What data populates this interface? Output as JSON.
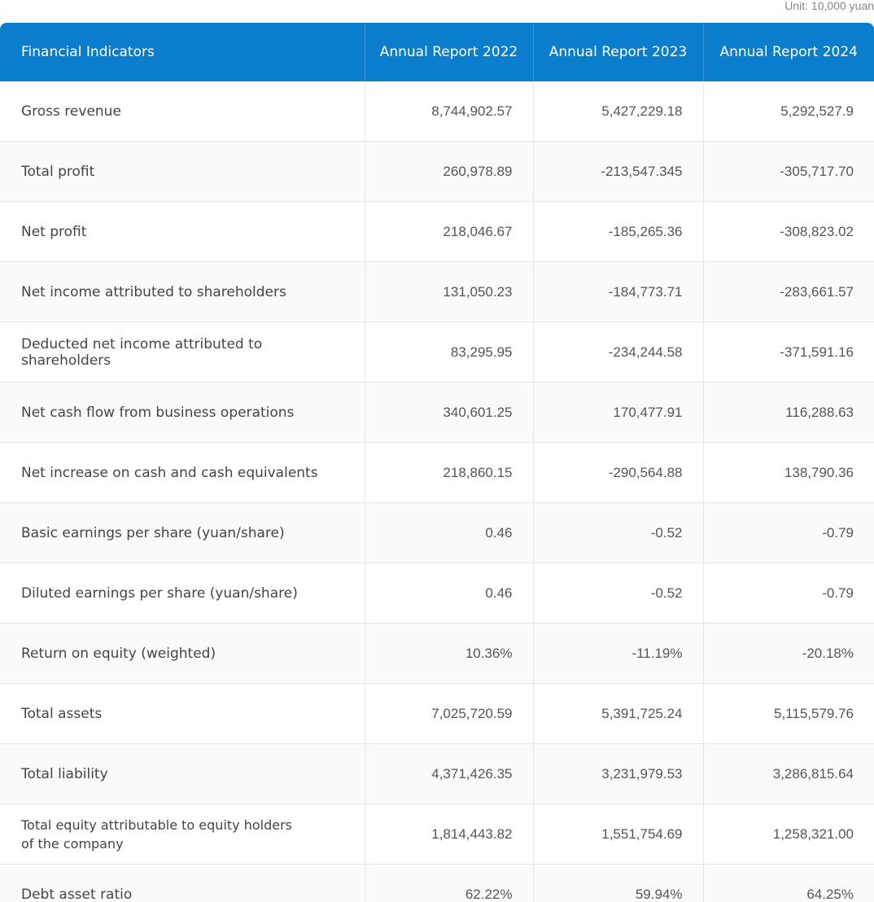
{
  "unit": "Unit: 10,000 yuan",
  "table": {
    "headers": [
      "Financial Indicators",
      "Annual Report 2022",
      "Annual Report 2023",
      "Annual Report 2024"
    ],
    "rows": [
      [
        "Gross revenue",
        "8,744,902.57",
        "5,427,229.18",
        "5,292,527.9"
      ],
      [
        "Total profit",
        "260,978.89",
        "-213,547.345",
        "-305,717.70"
      ],
      [
        "Net profit",
        "218,046.67",
        "-185,265.36",
        "-308,823.02"
      ],
      [
        "Net income attributed to shareholders",
        "131,050.23",
        "-184,773.71",
        "-283,661.57"
      ],
      [
        "Deducted net income attributed to shareholders",
        "83,295.95",
        "-234,244.58",
        "-371,591.16"
      ],
      [
        "Net cash flow from business operations",
        "340,601.25",
        "170,477.91",
        "116,288.63"
      ],
      [
        "Net increase on cash and cash equivalents",
        "218,860.15",
        "-290,564.88",
        "138,790.36"
      ],
      [
        "Basic earnings per share (yuan/share)",
        "0.46",
        "-0.52",
        "-0.79"
      ],
      [
        "Diluted earnings per share (yuan/share)",
        "0.46",
        "-0.52",
        "-0.79"
      ],
      [
        "Return on equity (weighted)",
        "10.36%",
        "-11.19%",
        "-20.18%"
      ],
      [
        "Total assets",
        "7,025,720.59",
        "5,391,725.24",
        "5,115,579.76"
      ],
      [
        "Total liability",
        "4,371,426.35",
        "3,231,979.53",
        "3,286,815.64"
      ],
      [
        "Total equity attributable to equity holders of the company",
        "1,814,443.82",
        "1,551,754.69",
        "1,258,321.00"
      ],
      [
        "Debt asset ratio",
        "62.22%",
        "59.94%",
        "64.25%"
      ]
    ]
  }
}
